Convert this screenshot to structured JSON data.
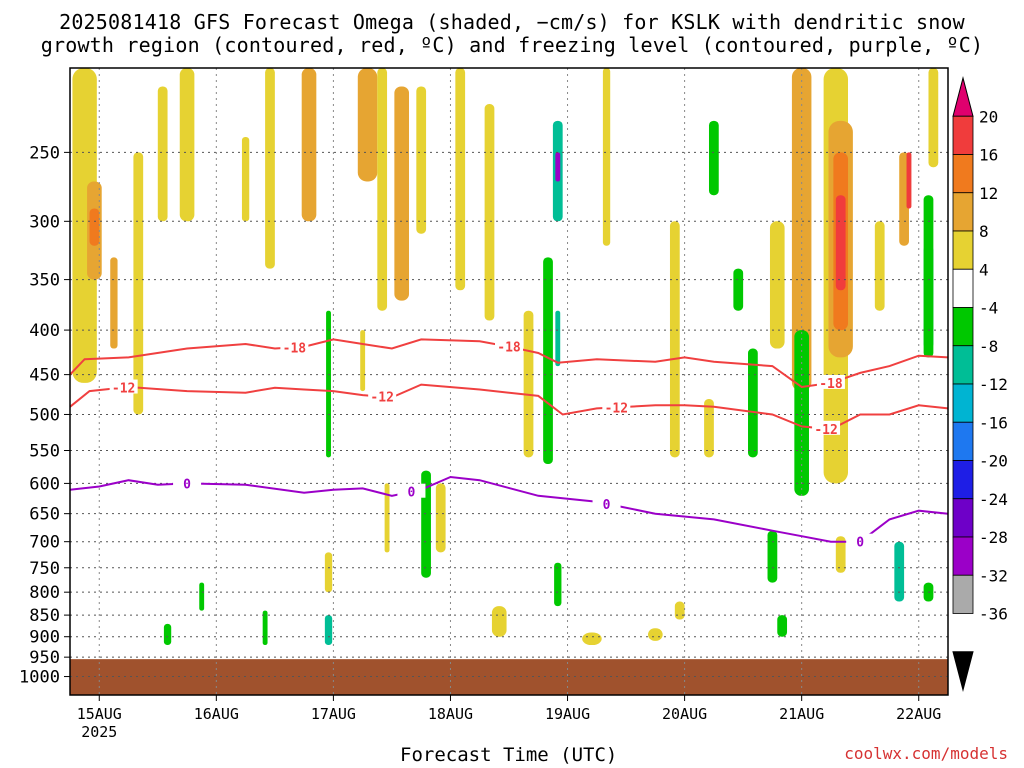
{
  "title": {
    "line1": "2025081418 GFS Forecast Omega (shaded, −cm/s) for KSLK with dendritic snow",
    "line2": "growth region (contoured, red, ºC) and freezing level (contoured, purple, ºC)"
  },
  "credit": "coolwx.com/models",
  "colors": {
    "ground": "#a0522d",
    "contour_dgz": "#f04040",
    "contour_freezing": "#9b00c8",
    "grid": "#555555"
  },
  "chart_data": {
    "type": "heatmap",
    "title": "2025081418 GFS Forecast Omega (shaded, −cm/s) for KSLK with dendritic snow growth region (contoured, red, ºC) and freezing level (contoured, purple, ºC)",
    "xlabel": "Forecast Time (UTC)",
    "ylabel": "",
    "x_ticks": [
      {
        "label": "15AUG",
        "sublabel": "2025",
        "hours": 6
      },
      {
        "label": "16AUG",
        "sublabel": "",
        "hours": 30
      },
      {
        "label": "17AUG",
        "sublabel": "",
        "hours": 54
      },
      {
        "label": "18AUG",
        "sublabel": "",
        "hours": 78
      },
      {
        "label": "19AUG",
        "sublabel": "",
        "hours": 102
      },
      {
        "label": "20AUG",
        "sublabel": "",
        "hours": 126
      },
      {
        "label": "21AUG",
        "sublabel": "",
        "hours": 150
      },
      {
        "label": "22AUG",
        "sublabel": "",
        "hours": 174
      }
    ],
    "xlim_hours": [
      0,
      180
    ],
    "y_scale": "log",
    "ylim_hpa": [
      200,
      1050
    ],
    "y_ticks": [
      250,
      300,
      350,
      400,
      450,
      500,
      550,
      600,
      650,
      700,
      750,
      800,
      850,
      900,
      950,
      1000
    ],
    "surface_pressure_hpa": 955,
    "colorbar": {
      "labels": [
        20,
        16,
        12,
        8,
        4,
        -4,
        -8,
        -12,
        -16,
        -20,
        -24,
        -28,
        -32,
        -36
      ],
      "colors": [
        "#e0006e",
        "#f03c3c",
        "#f07a1e",
        "#e6a532",
        "#e6d232",
        "#ffffff",
        "#00c800",
        "#00be96",
        "#00b4d2",
        "#1e78f0",
        "#1e1ee6",
        "#6e00c8",
        "#9b00c8",
        "#aaaaaa",
        "#000000"
      ]
    },
    "contours": [
      {
        "label": "-18",
        "color": "#f04040",
        "points": [
          [
            0,
            450
          ],
          [
            3,
            432
          ],
          [
            12,
            430
          ],
          [
            24,
            420
          ],
          [
            36,
            415
          ],
          [
            42,
            420
          ],
          [
            48,
            418
          ],
          [
            54,
            410
          ],
          [
            60,
            415
          ],
          [
            66,
            420
          ],
          [
            72,
            410
          ],
          [
            84,
            412
          ],
          [
            90,
            418
          ],
          [
            96,
            425
          ],
          [
            100,
            436
          ],
          [
            108,
            432
          ],
          [
            120,
            435
          ],
          [
            126,
            430
          ],
          [
            132,
            435
          ],
          [
            144,
            440
          ],
          [
            150,
            465
          ],
          [
            156,
            460
          ],
          [
            162,
            448
          ],
          [
            168,
            440
          ],
          [
            174,
            428
          ],
          [
            180,
            430
          ]
        ],
        "label_hours": [
          46,
          90,
          156
        ]
      },
      {
        "label": "-12",
        "color": "#f04040",
        "points": [
          [
            0,
            490
          ],
          [
            4,
            470
          ],
          [
            12,
            465
          ],
          [
            24,
            470
          ],
          [
            36,
            472
          ],
          [
            42,
            466
          ],
          [
            48,
            468
          ],
          [
            54,
            470
          ],
          [
            60,
            475
          ],
          [
            66,
            478
          ],
          [
            72,
            462
          ],
          [
            84,
            468
          ],
          [
            96,
            476
          ],
          [
            101,
            500
          ],
          [
            108,
            492
          ],
          [
            120,
            488
          ],
          [
            126,
            488
          ],
          [
            132,
            490
          ],
          [
            144,
            500
          ],
          [
            150,
            516
          ],
          [
            156,
            520
          ],
          [
            162,
            500
          ],
          [
            168,
            500
          ],
          [
            174,
            488
          ],
          [
            180,
            492
          ]
        ],
        "label_hours": [
          11,
          64,
          112,
          155
        ]
      },
      {
        "label": "0",
        "color": "#9b00c8",
        "points": [
          [
            0,
            610
          ],
          [
            6,
            605
          ],
          [
            12,
            595
          ],
          [
            18,
            602
          ],
          [
            24,
            600
          ],
          [
            36,
            602
          ],
          [
            48,
            615
          ],
          [
            54,
            610
          ],
          [
            60,
            608
          ],
          [
            66,
            620
          ],
          [
            72,
            610
          ],
          [
            78,
            590
          ],
          [
            84,
            595
          ],
          [
            96,
            620
          ],
          [
            108,
            630
          ],
          [
            120,
            650
          ],
          [
            132,
            660
          ],
          [
            144,
            680
          ],
          [
            150,
            690
          ],
          [
            156,
            700
          ],
          [
            162,
            700
          ],
          [
            168,
            660
          ],
          [
            174,
            645
          ],
          [
            180,
            650
          ]
        ],
        "label_hours": [
          24,
          70,
          110,
          162
        ]
      }
    ]
  }
}
